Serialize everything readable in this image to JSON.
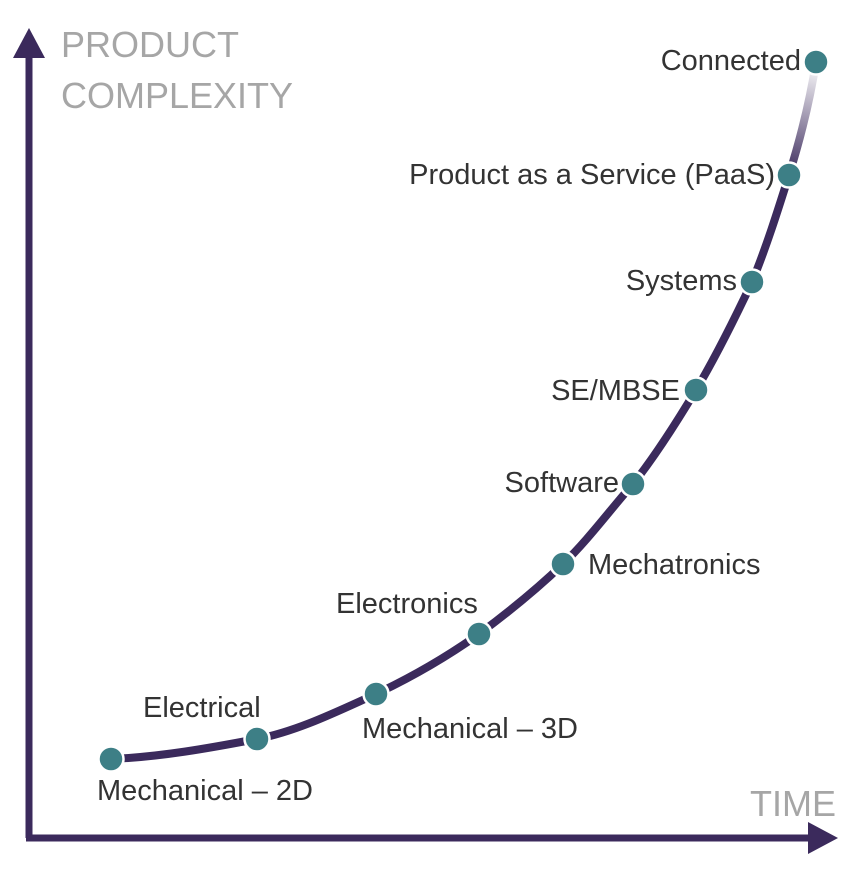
{
  "axes": {
    "y_title_lines": [
      "PRODUCT",
      "COMPLEXITY"
    ],
    "x_title": "TIME"
  },
  "colors": {
    "axis": "#3b2a5c",
    "curve": "#3b2a5c",
    "dot": "#3d7f86",
    "axis_title": "#a6a6a6",
    "label": "#333333"
  },
  "milestones": [
    {
      "label": "Mechanical – 2D"
    },
    {
      "label": "Electrical"
    },
    {
      "label": "Mechanical – 3D"
    },
    {
      "label": "Electronics"
    },
    {
      "label": "Mechatronics"
    },
    {
      "label": "Software"
    },
    {
      "label": "SE/MBSE"
    },
    {
      "label": "Systems"
    },
    {
      "label": "Product as a Service (PaaS)"
    },
    {
      "label": "Connected"
    }
  ]
}
